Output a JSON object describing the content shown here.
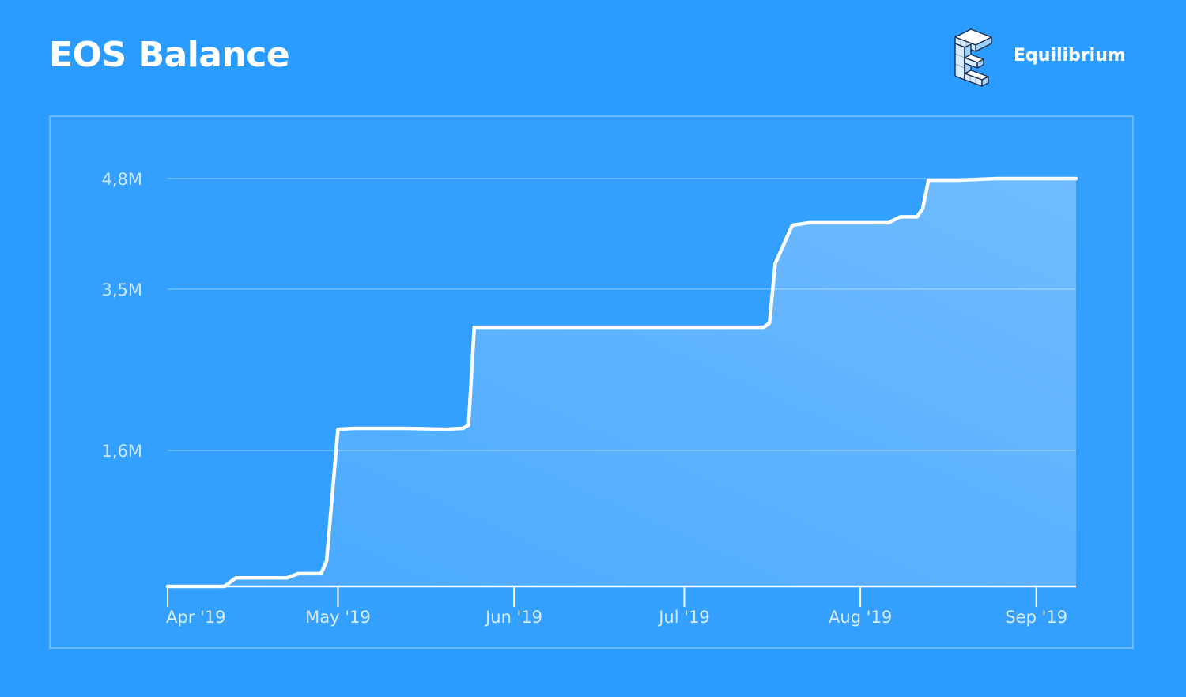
{
  "header": {
    "title": "EOS Balance",
    "brand_name": "Equilibrium",
    "brand_logo_icon": "cube-letter-e-logo"
  },
  "colors": {
    "background": "#2b9cff",
    "line": "#ffffff",
    "grid": "#7cc3ff"
  },
  "chart_data": {
    "type": "area",
    "title": "EOS Balance",
    "xlabel": "",
    "ylabel": "",
    "x_ticks": [
      "Apr '19",
      "May '19",
      "Jun '19",
      "Jul '19",
      "Aug '19",
      "Sep '19"
    ],
    "x_tick_dates": [
      "2019-04-01",
      "2019-05-01",
      "2019-06-01",
      "2019-07-01",
      "2019-08-01",
      "2019-09-01"
    ],
    "y_ticks": [
      "1,6M",
      "3,5M",
      "4,8M"
    ],
    "y_tick_values": [
      1.6,
      3.5,
      4.8
    ],
    "y_unit": "M",
    "ylim": [
      0.0,
      4.8
    ],
    "xlim": [
      "2019-04-01",
      "2019-09-08"
    ],
    "grid": true,
    "legend": "none",
    "series": [
      {
        "points": [
          [
            "2019-04-01",
            0.0
          ],
          [
            "2019-04-11",
            0.0
          ],
          [
            "2019-04-13",
            0.1
          ],
          [
            "2019-04-22",
            0.1
          ],
          [
            "2019-04-24",
            0.15
          ],
          [
            "2019-04-28",
            0.15
          ],
          [
            "2019-04-29",
            0.3
          ],
          [
            "2019-05-01",
            1.85
          ],
          [
            "2019-05-04",
            1.86
          ],
          [
            "2019-05-13",
            1.86
          ],
          [
            "2019-05-20",
            1.85
          ],
          [
            "2019-05-23",
            1.86
          ],
          [
            "2019-05-24",
            1.9
          ],
          [
            "2019-05-25",
            3.05
          ],
          [
            "2019-06-10",
            3.05
          ],
          [
            "2019-06-30",
            3.05
          ],
          [
            "2019-07-15",
            3.05
          ],
          [
            "2019-07-16",
            3.1
          ],
          [
            "2019-07-17",
            3.8
          ],
          [
            "2019-07-18",
            3.95
          ],
          [
            "2019-07-20",
            4.25
          ],
          [
            "2019-07-23",
            4.28
          ],
          [
            "2019-08-06",
            4.28
          ],
          [
            "2019-08-08",
            4.35
          ],
          [
            "2019-08-11",
            4.35
          ],
          [
            "2019-08-12",
            4.45
          ],
          [
            "2019-08-13",
            4.78
          ],
          [
            "2019-08-18",
            4.78
          ],
          [
            "2019-08-25",
            4.8
          ],
          [
            "2019-09-08",
            4.8
          ]
        ]
      }
    ]
  }
}
